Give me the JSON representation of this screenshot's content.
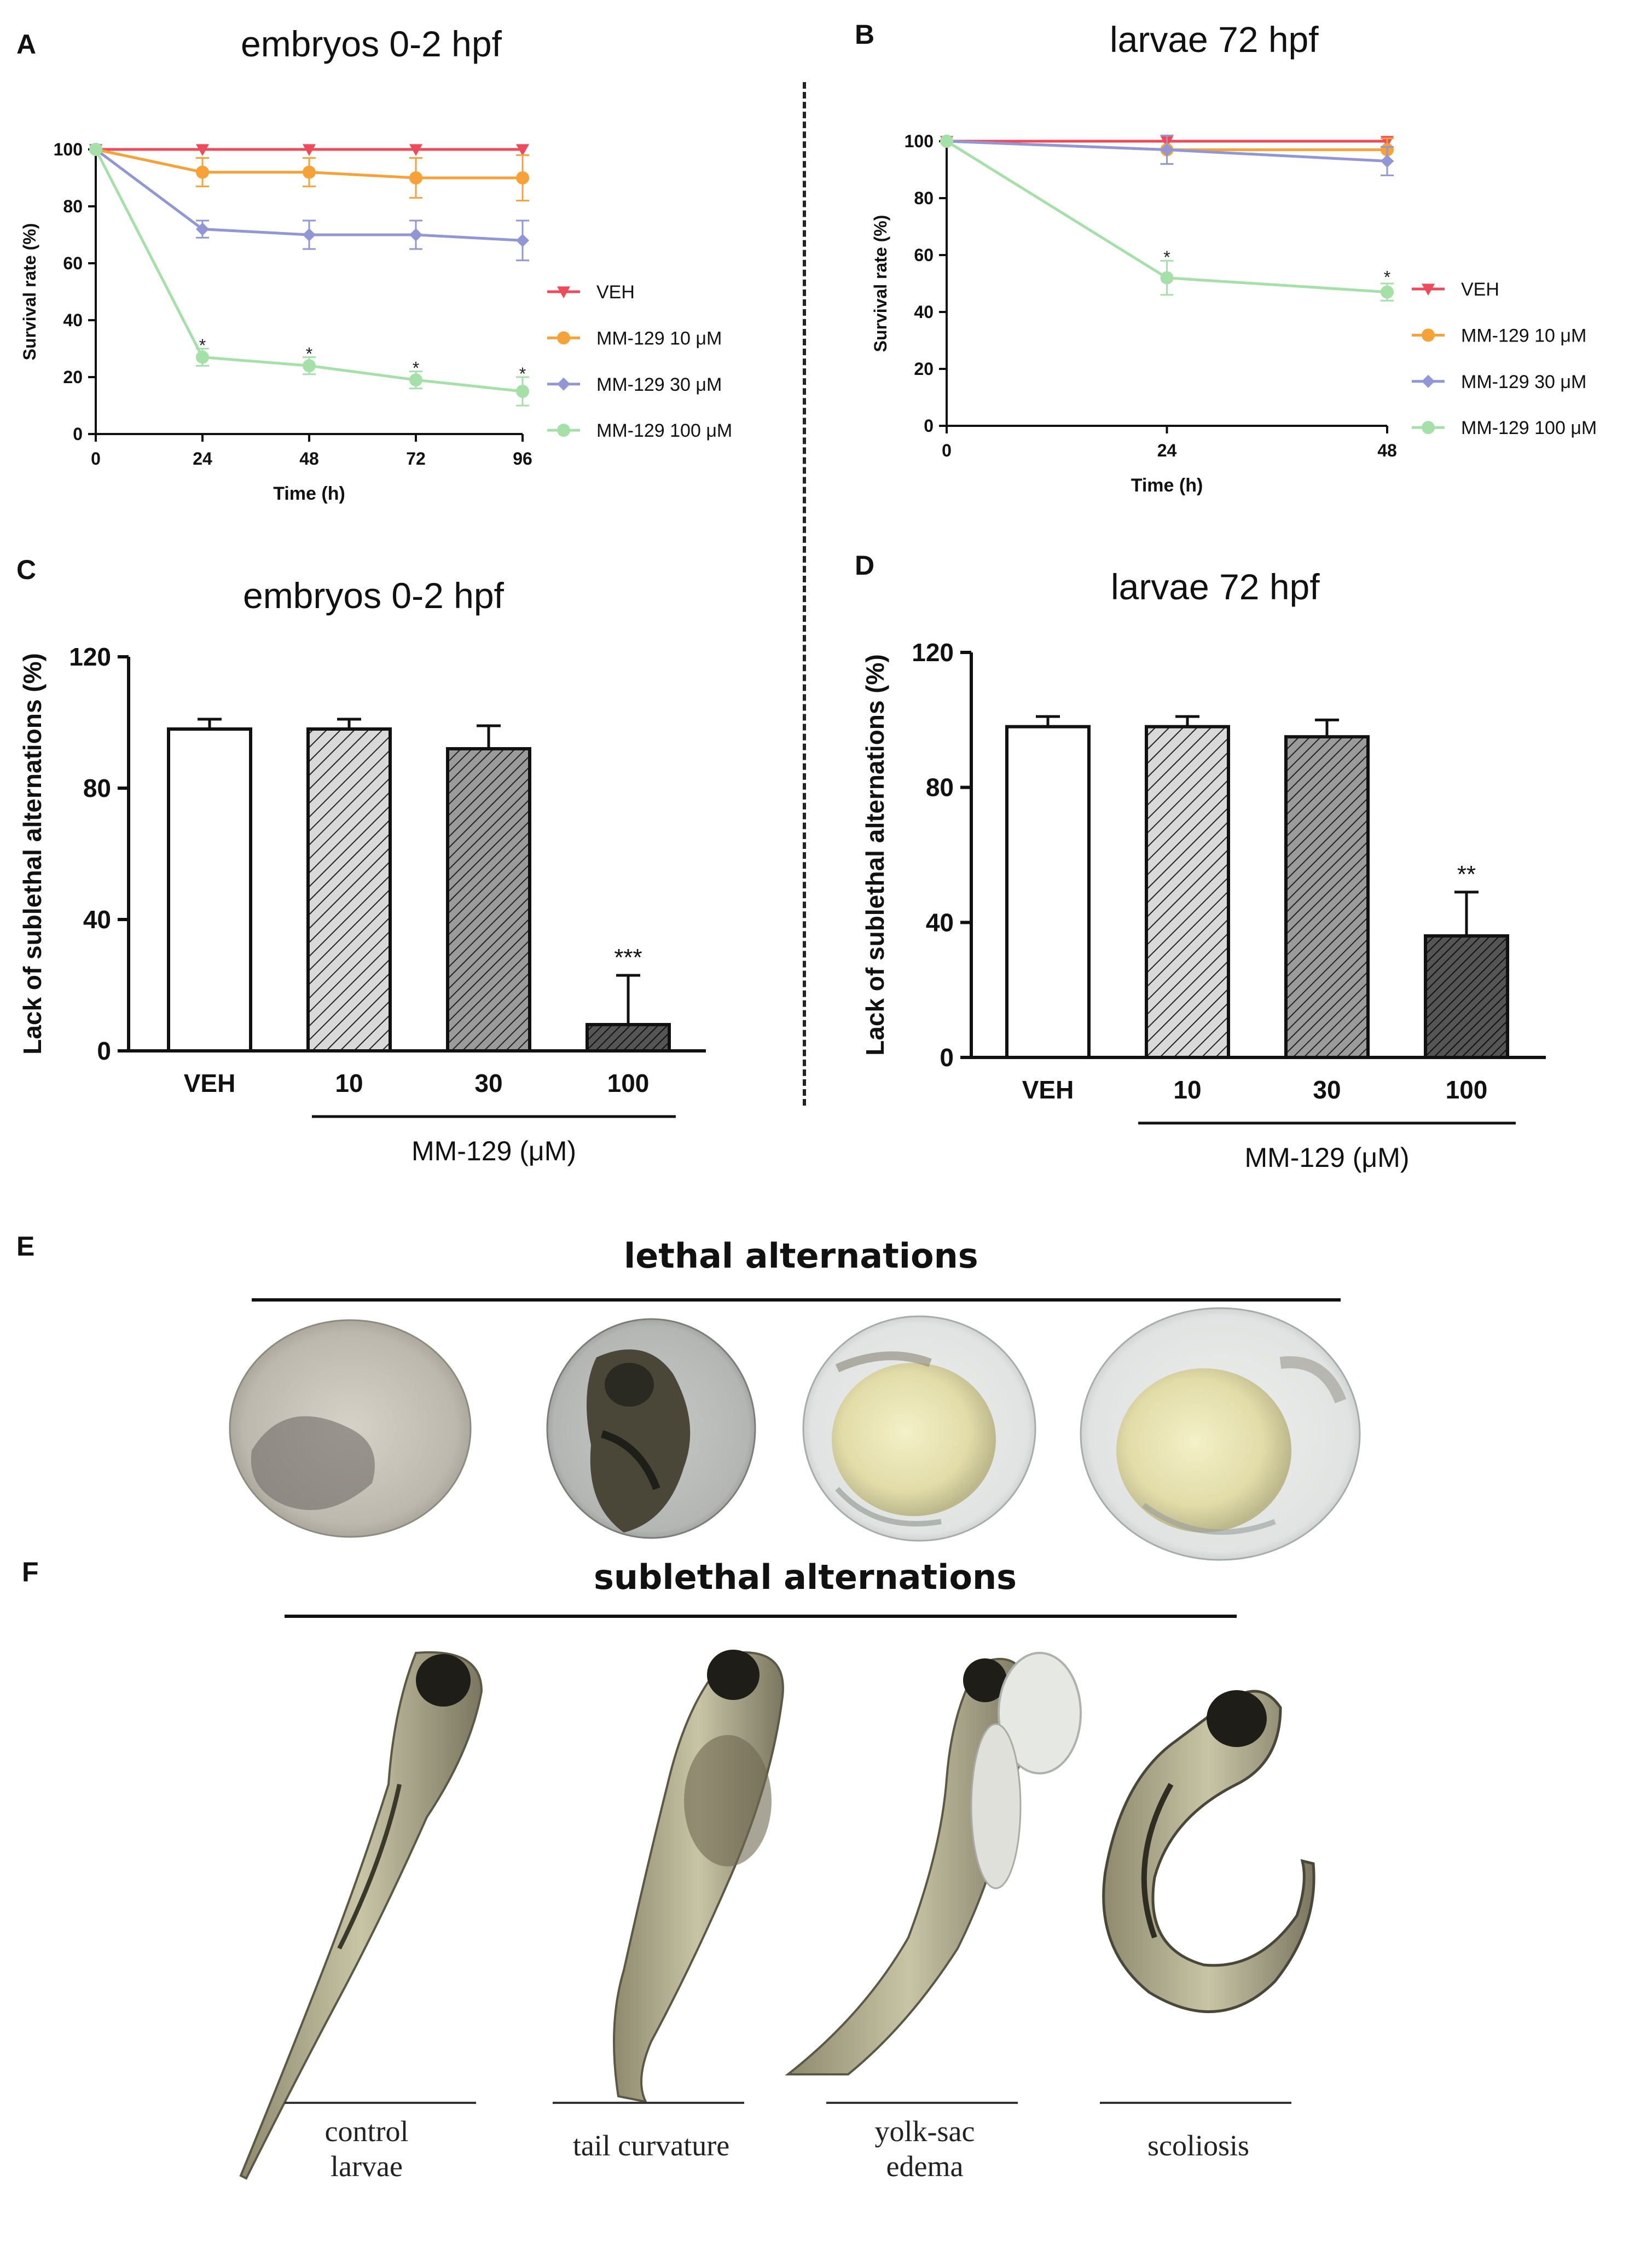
{
  "panels": {
    "A": {
      "letter": "A",
      "title": "embryos 0-2 hpf"
    },
    "B": {
      "letter": "B",
      "title": "larvae 72 hpf"
    },
    "C": {
      "letter": "C",
      "title": "embryos 0-2 hpf"
    },
    "D": {
      "letter": "D",
      "title": "larvae 72 hpf"
    },
    "E": {
      "letter": "E",
      "title": "lethal alternations"
    },
    "F": {
      "letter": "F",
      "title": "sublethal alternations",
      "captions": [
        "control\nlarvae",
        "tail curvature",
        "yolk-sac\nedema",
        "scoliosis"
      ]
    }
  },
  "colors": {
    "veh": "#ef4a5a",
    "mm10": "#f7a239",
    "mm30": "#9096d6",
    "mm100": "#a6e0a9"
  },
  "chart_data": [
    {
      "id": "A",
      "type": "line",
      "title": "embryos 0-2 hpf",
      "xlabel": "Time (h)",
      "ylabel": "Survival rate (%)",
      "x": [
        0,
        24,
        48,
        72,
        96
      ],
      "xticks": [
        "0",
        "24",
        "48",
        "72",
        "96"
      ],
      "yticks": [
        "0",
        "20",
        "40",
        "60",
        "80",
        "100"
      ],
      "ylim": [
        0,
        100
      ],
      "series": [
        {
          "name": "VEH",
          "color_key": "veh",
          "marker": "triangle-down",
          "values": [
            100,
            100,
            100,
            100,
            100
          ],
          "err": [
            0,
            0,
            0,
            0,
            0
          ]
        },
        {
          "name": "MM-129 10 μM",
          "color_key": "mm10",
          "marker": "circle",
          "values": [
            100,
            92,
            92,
            90,
            90
          ],
          "err": [
            0,
            5,
            5,
            7,
            8
          ]
        },
        {
          "name": "MM-129 30 μM",
          "color_key": "mm30",
          "marker": "diamond",
          "values": [
            100,
            72,
            70,
            70,
            68
          ],
          "err": [
            0,
            3,
            5,
            5,
            7
          ]
        },
        {
          "name": "MM-129 100 μM",
          "color_key": "mm100",
          "marker": "circle",
          "values": [
            100,
            27,
            24,
            19,
            15
          ],
          "err": [
            0,
            3,
            3,
            3,
            5
          ]
        }
      ],
      "annotations": [
        {
          "x": 24,
          "y": 31,
          "text": "*"
        },
        {
          "x": 48,
          "y": 28,
          "text": "*"
        },
        {
          "x": 72,
          "y": 23,
          "text": "*"
        },
        {
          "x": 96,
          "y": 21,
          "text": "*"
        }
      ],
      "legend": "right"
    },
    {
      "id": "B",
      "type": "line",
      "title": "larvae 72 hpf",
      "xlabel": "Time (h)",
      "ylabel": "Survival rate (%)",
      "x": [
        0,
        24,
        48
      ],
      "xticks": [
        "0",
        "24",
        "48"
      ],
      "yticks": [
        "0",
        "20",
        "40",
        "60",
        "80",
        "100"
      ],
      "ylim": [
        0,
        100
      ],
      "series": [
        {
          "name": "VEH",
          "color_key": "veh",
          "marker": "triangle-down",
          "values": [
            100,
            100,
            100
          ],
          "err": [
            0,
            0,
            0
          ]
        },
        {
          "name": "MM-129 10 μM",
          "color_key": "mm10",
          "marker": "circle",
          "values": [
            100,
            97,
            97
          ],
          "err": [
            0,
            5,
            4
          ]
        },
        {
          "name": "MM-129 30 μM",
          "color_key": "mm30",
          "marker": "diamond",
          "values": [
            100,
            97,
            93
          ],
          "err": [
            0,
            5,
            5
          ]
        },
        {
          "name": "MM-129 100 μM",
          "color_key": "mm100",
          "marker": "circle",
          "values": [
            100,
            52,
            47
          ],
          "err": [
            0,
            6,
            3
          ]
        }
      ],
      "annotations": [
        {
          "x": 24,
          "y": 59,
          "text": "*"
        },
        {
          "x": 48,
          "y": 52,
          "text": "*"
        }
      ],
      "legend": "right"
    },
    {
      "id": "C",
      "type": "bar",
      "title": "embryos 0-2 hpf",
      "ylabel": "Lack of sublethal alternations (%)",
      "xlabel": "MM-129 (μM)",
      "categories": [
        "VEH",
        "10",
        "30",
        "100"
      ],
      "values": [
        98,
        98,
        92,
        8
      ],
      "err": [
        3,
        3,
        7,
        15
      ],
      "annotations": [
        "",
        "",
        "",
        "***"
      ],
      "yticks": [
        "0",
        "40",
        "80",
        "120"
      ],
      "ylim": [
        0,
        120
      ]
    },
    {
      "id": "D",
      "type": "bar",
      "title": "larvae 72 hpf",
      "ylabel": "Lack of sublethal alternations (%)",
      "xlabel": "MM-129 (μM)",
      "categories": [
        "VEH",
        "10",
        "30",
        "100"
      ],
      "values": [
        98,
        98,
        95,
        36
      ],
      "err": [
        3,
        3,
        5,
        13
      ],
      "annotations": [
        "",
        "",
        "",
        "**"
      ],
      "yticks": [
        "0",
        "40",
        "80",
        "120"
      ],
      "ylim": [
        0,
        120
      ]
    }
  ]
}
